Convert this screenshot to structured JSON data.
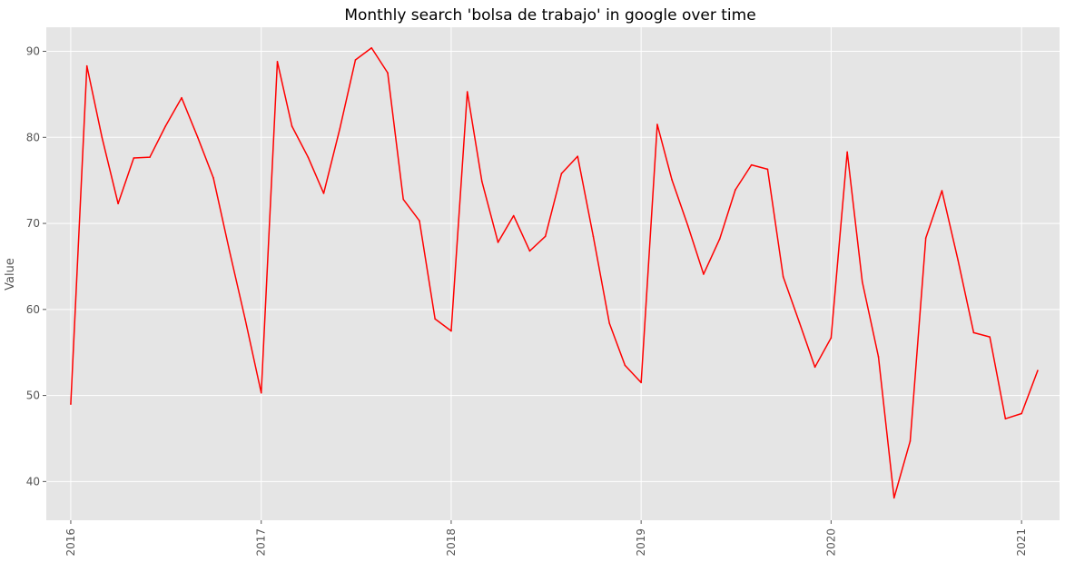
{
  "chart_data": {
    "type": "line",
    "title": "Monthly search 'bolsa de trabajo' in google over time",
    "xlabel": "",
    "ylabel": "Value",
    "xlim": [
      "2015-11-15",
      "2021-03-15"
    ],
    "ylim": [
      35.5,
      92.8
    ],
    "x_ticks": [
      "2016",
      "2017",
      "2018",
      "2019",
      "2020",
      "2021"
    ],
    "y_ticks": [
      40,
      50,
      60,
      70,
      80,
      90
    ],
    "grid": true,
    "background_color": "#e5e5e5",
    "line_color": "#ff0000",
    "series": [
      {
        "x": [
          "2016-01",
          "2016-02",
          "2016-03",
          "2016-04",
          "2016-05",
          "2016-06",
          "2016-07",
          "2016-08",
          "2016-09",
          "2016-10",
          "2016-11",
          "2016-12",
          "2017-01",
          "2017-02",
          "2017-03",
          "2017-04",
          "2017-05",
          "2017-06",
          "2017-07",
          "2017-08",
          "2017-09",
          "2017-10",
          "2017-11",
          "2017-12",
          "2018-01",
          "2018-02",
          "2018-03",
          "2018-04",
          "2018-05",
          "2018-06",
          "2018-07",
          "2018-08",
          "2018-09",
          "2018-10",
          "2018-11",
          "2018-12",
          "2019-01",
          "2019-02",
          "2019-03",
          "2019-04",
          "2019-05",
          "2019-06",
          "2019-07",
          "2019-08",
          "2019-09",
          "2019-10",
          "2019-11",
          "2019-12",
          "2020-01",
          "2020-02",
          "2020-03",
          "2020-04",
          "2020-05",
          "2020-06",
          "2020-07",
          "2020-08",
          "2020-09",
          "2020-10",
          "2020-11",
          "2020-12",
          "2021-01",
          "2021-02"
        ],
        "values": [
          49,
          88.3,
          80,
          72.3,
          77.6,
          77.7,
          81.3,
          84.6,
          80,
          75.3,
          66.8,
          58.9,
          50.3,
          88.8,
          81.3,
          77.7,
          73.5,
          81,
          89,
          90.4,
          87.5,
          72.8,
          70.3,
          58.9,
          57.5,
          85.3,
          74.9,
          67.8,
          70.9,
          66.8,
          68.5,
          75.8,
          77.8,
          68.5,
          58.4,
          53.5,
          51.5,
          81.5,
          75.1,
          69.7,
          64.1,
          68.2,
          73.9,
          76.8,
          76.3,
          63.8,
          58.5,
          53.3,
          56.7,
          78.3,
          63.2,
          54.5,
          38.1,
          44.7,
          68.3,
          73.8,
          65.7,
          57.3,
          56.8,
          47.3,
          47.9,
          52.9
        ]
      }
    ]
  }
}
